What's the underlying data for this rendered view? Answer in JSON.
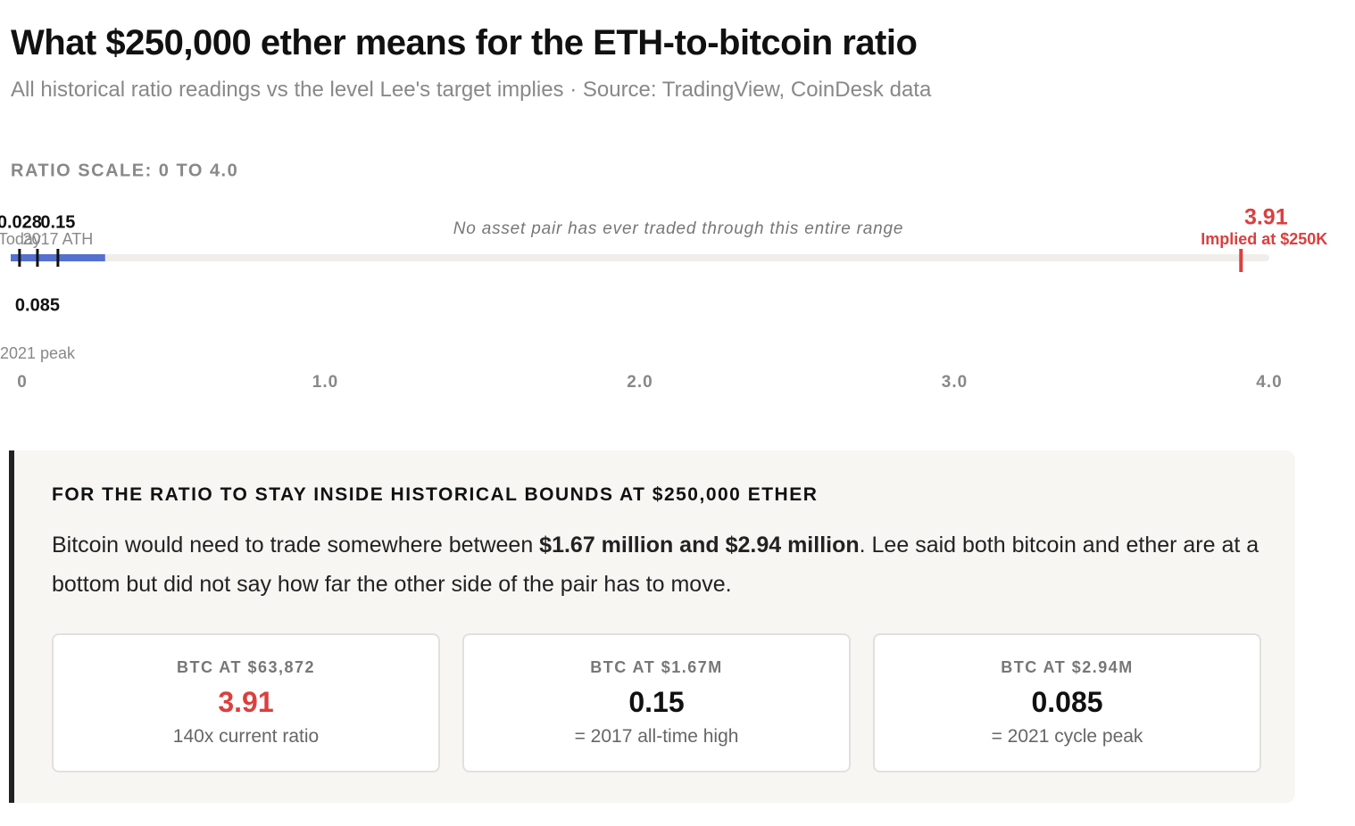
{
  "header": {
    "title": "What $250,000 ether means for the ETH-to-bitcoin ratio",
    "subtitle": "All historical ratio readings vs the level Lee's target implies · Source: TradingView, CoinDesk data"
  },
  "chart_data": {
    "type": "strip",
    "axis_label": "RATIO SCALE: 0 TO 4.0",
    "note": "No asset pair has ever traded through this entire range",
    "xlim": [
      0,
      4
    ],
    "xticks": [
      0,
      {
        "value": 1,
        "label": "1.0"
      },
      {
        "value": 2,
        "label": "2.0"
      },
      {
        "value": 3,
        "label": "3.0"
      },
      {
        "value": 4,
        "label": "4.0"
      }
    ],
    "historical_range": [
      0,
      0.3
    ],
    "range_color": "#5570d0",
    "markers": [
      {
        "name": "Today",
        "value": 0.028,
        "color": "#111111"
      },
      {
        "name": "2017 ATH",
        "value": 0.15,
        "color": "#111111"
      },
      {
        "name": "2021 peak",
        "value": 0.085,
        "color": "#111111"
      },
      {
        "name": "Implied at $250K",
        "value": 3.91,
        "color": "#d9403f"
      }
    ]
  },
  "callout": {
    "heading": "FOR THE RATIO TO STAY INSIDE HISTORICAL BOUNDS AT $250,000 ETHER",
    "body_start": "Bitcoin would need to trade somewhere between ",
    "body_bold": "$1.67 million and $2.94 million",
    "body_end": ". Lee said both bitcoin and ether are at a bottom but did not say how far the other side of the pair has to move.",
    "cards": [
      {
        "label": "BTC AT $63,872",
        "value": "3.91",
        "note": "140x current ratio"
      },
      {
        "label": "BTC AT $1.67M",
        "value": "0.15",
        "note": "= 2017 all-time high"
      },
      {
        "label": "BTC AT $2.94M",
        "value": "0.085",
        "note": "= 2021 cycle peak"
      }
    ]
  }
}
